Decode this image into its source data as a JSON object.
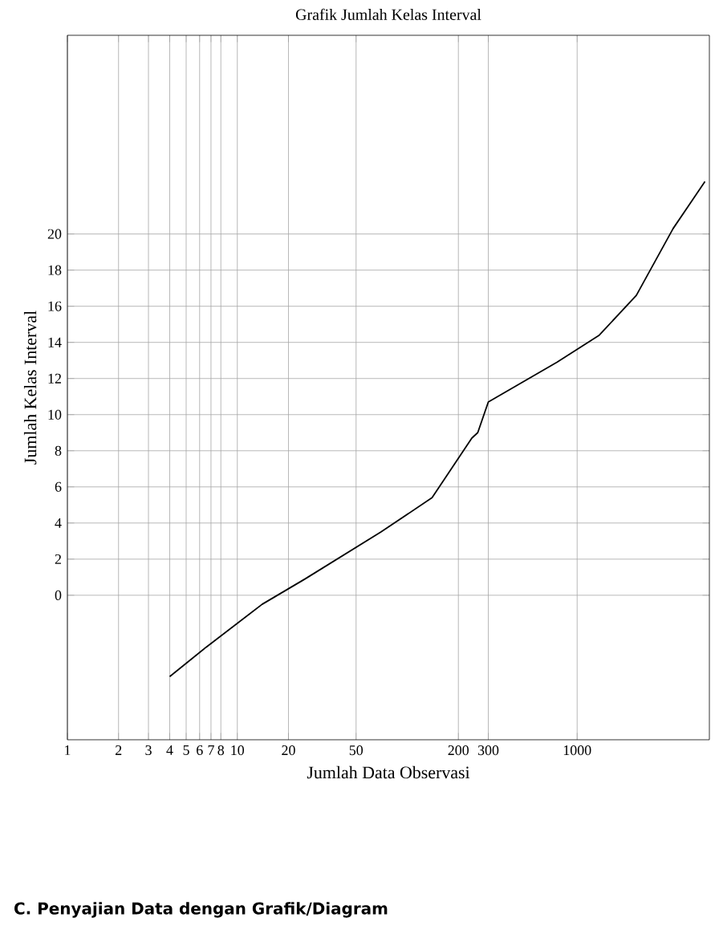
{
  "chart_data": {
    "type": "line",
    "title": "Grafik Jumlah Kelas Interval",
    "xlabel": "Jumlah Data Observasi",
    "ylabel": "Jumlah Kelas Interval",
    "annotations": [
      "C. Penyajian Data dengan Grafik/Diagram"
    ],
    "x": [
      4,
      6.5,
      14,
      25,
      70,
      140,
      240,
      260,
      300,
      760,
      1350,
      2230,
      3670,
      5650
    ],
    "values": [
      -4.5,
      -2.9,
      -0.5,
      0.9,
      3.5,
      5.4,
      8.7,
      9.0,
      10.7,
      12.9,
      14.4,
      16.6,
      20.3,
      22.9
    ],
    "color": "#000000",
    "log": "x",
    "grid": true,
    "xlim": [
      1,
      6000
    ],
    "ylim": [
      -8,
      31
    ],
    "xticks": [
      1,
      2,
      3,
      4,
      5,
      6,
      7,
      8,
      10,
      20,
      50,
      200,
      300,
      1000
    ],
    "yticks": [
      0,
      2,
      4,
      6,
      8,
      10,
      12,
      14,
      16,
      18,
      20
    ]
  }
}
